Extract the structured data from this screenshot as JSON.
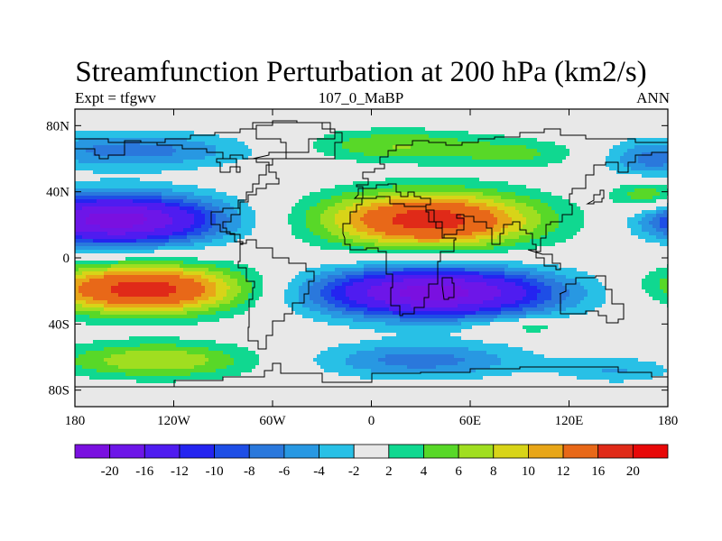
{
  "title": "Streamfunction Perturbation at 200 hPa (km2/s)",
  "subtitle_left": "Expt = tfgwv",
  "subtitle_center": "107_0_MaBP",
  "subtitle_right": "ANN",
  "chart_data": {
    "type": "heatmap",
    "description_variable": "Streamfunction Perturbation at 200 hPa",
    "units": "km2/s",
    "x_range": [
      -180,
      180
    ],
    "y_range": [
      -90,
      90
    ],
    "x_ticks": [
      {
        "value": -180,
        "label": "180"
      },
      {
        "value": -120,
        "label": "120W"
      },
      {
        "value": -60,
        "label": "60W"
      },
      {
        "value": 0,
        "label": "0"
      },
      {
        "value": 60,
        "label": "60E"
      },
      {
        "value": 120,
        "label": "120E"
      },
      {
        "value": 180,
        "label": "180"
      }
    ],
    "y_ticks": [
      {
        "value": 80,
        "label": "80N"
      },
      {
        "value": 40,
        "label": "40N"
      },
      {
        "value": 0,
        "label": "0"
      },
      {
        "value": -40,
        "label": "40S"
      },
      {
        "value": -80,
        "label": "80S"
      }
    ],
    "colorbar_levels": [
      "-20",
      "-16",
      "-12",
      "-10",
      "-8",
      "-6",
      "-4",
      "-2",
      "2",
      "4",
      "6",
      "8",
      "10",
      "12",
      "16",
      "20"
    ],
    "colorbar_colors": [
      "#7a10e0",
      "#6d16e8",
      "#4f1cf0",
      "#2424f0",
      "#1e4ee6",
      "#2a78dc",
      "#2898e2",
      "#28c0e6",
      "#e8e8e8",
      "#10d890",
      "#58d828",
      "#a0de20",
      "#d8d418",
      "#e8a618",
      "#e86818",
      "#e02a18",
      "#e80808"
    ],
    "features": [
      {
        "name": "high_eurasia",
        "lon": 35,
        "lat": 23,
        "peak": 18,
        "rlon": 65,
        "rlat": 17
      },
      {
        "name": "low_pacific_north",
        "lon": -155,
        "lat": 23,
        "peak": -22,
        "rlon": 62,
        "rlat": 15
      },
      {
        "name": "low_pacific_north_wrap",
        "lon": 200,
        "lat": 22,
        "peak": -14,
        "rlon": 35,
        "rlat": 12
      },
      {
        "name": "high_pacific_south",
        "lon": -138,
        "lat": -19,
        "peak": 18,
        "rlon": 62,
        "rlat": 15
      },
      {
        "name": "low_indian_south",
        "lon": 38,
        "lat": -21,
        "peak": -22,
        "rlon": 72,
        "rlat": 15
      },
      {
        "name": "high_pacific_south_wrap",
        "lon": 205,
        "lat": -17,
        "peak": 8,
        "rlon": 40,
        "rlat": 13
      },
      {
        "name": "low_arctic_west",
        "lon": -145,
        "lat": 65,
        "peak": -7,
        "rlon": 70,
        "rlat": 11
      },
      {
        "name": "high_arctic_europe",
        "lon": 15,
        "lat": 68,
        "peak": 6,
        "rlon": 55,
        "rlat": 10
      },
      {
        "name": "high_arctic_siberia",
        "lon": 90,
        "lat": 63,
        "peak": 4,
        "rlon": 40,
        "rlat": 9
      },
      {
        "name": "low_arctic_east",
        "lon": 172,
        "lat": 60,
        "peak": -7,
        "rlon": 30,
        "rlat": 12
      },
      {
        "name": "high_north_pacific_east",
        "lon": 168,
        "lat": 38,
        "peak": 6,
        "rlon": 22,
        "rlat": 9
      },
      {
        "name": "high_southern_ocean_west",
        "lon": -130,
        "lat": -62,
        "peak": 8,
        "rlon": 60,
        "rlat": 11
      },
      {
        "name": "low_southern_ocean_east",
        "lon": 30,
        "lat": -62,
        "peak": -7,
        "rlon": 65,
        "rlat": 11
      },
      {
        "name": "low_southern_ocean_far_east",
        "lon": 150,
        "lat": -68,
        "peak": -4,
        "rlon": 35,
        "rlat": 8
      },
      {
        "name": "high_south_indian_band",
        "lon": 95,
        "lat": -42,
        "peak": 4,
        "rlon": 28,
        "rlat": 5
      }
    ]
  }
}
